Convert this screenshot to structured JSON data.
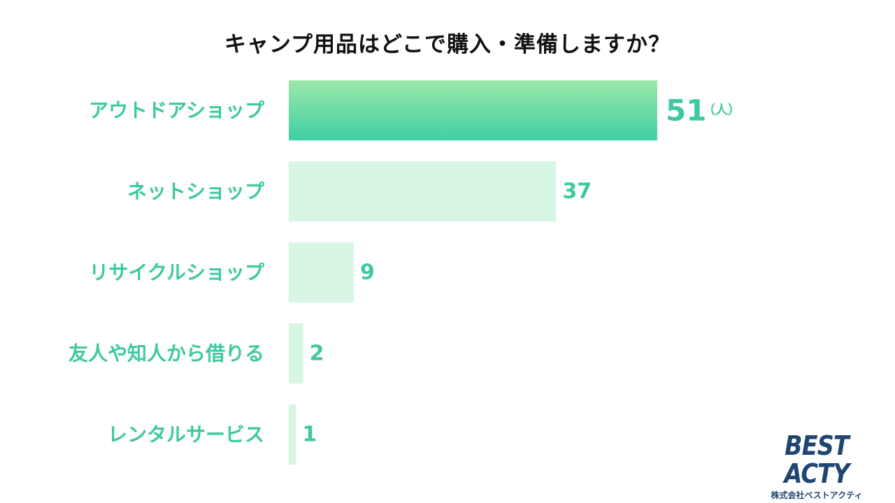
{
  "chart_data": {
    "type": "bar",
    "orientation": "horizontal",
    "title": "キャンプ用品はどこで購入・準備しますか？",
    "categories": [
      "アウトドアショップ",
      "ネットショップ",
      "リサイクルショップ",
      "友人や知人から借りる",
      "レンタルサービス"
    ],
    "values": [
      51,
      37,
      9,
      2,
      1
    ],
    "unit": "（人）",
    "xlim": [
      0,
      51
    ],
    "grid": false,
    "legend": "none",
    "colors": {
      "highlight_top": "#9be8a8",
      "highlight_bottom": "#3fcfa5",
      "bar": "#d7f6e4",
      "label": "#3ec9a0",
      "title": "#111111"
    }
  },
  "brand": {
    "name": "BEST ACTY",
    "sub": "株式会社ベストアクティ",
    "color": "#1f4670"
  }
}
